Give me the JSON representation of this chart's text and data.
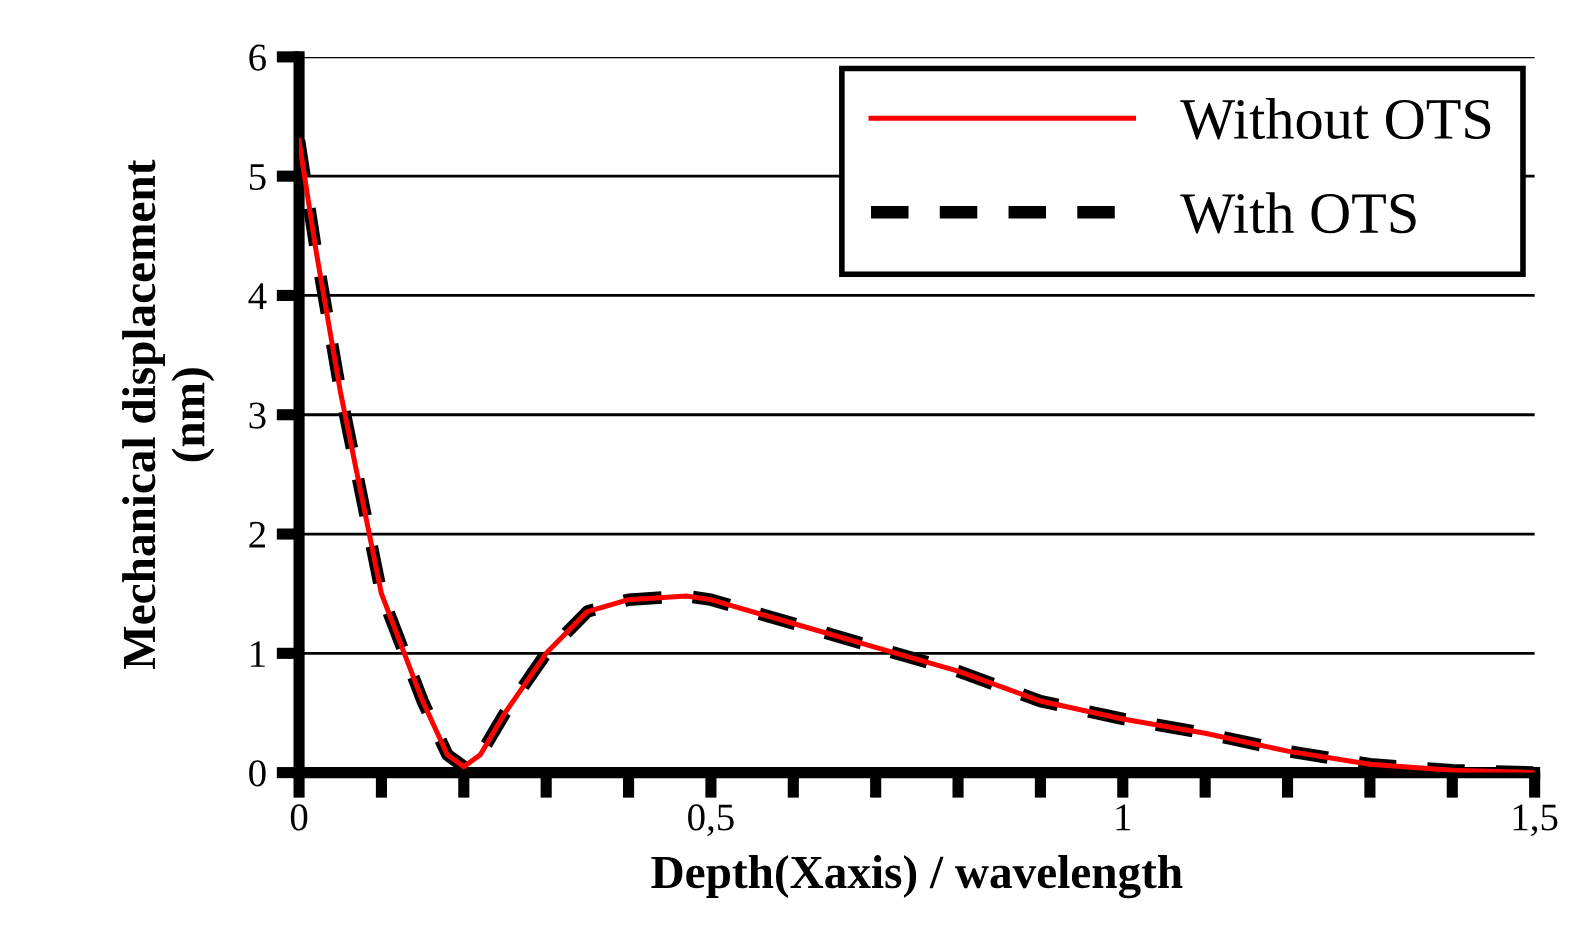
{
  "chart_data": {
    "type": "line",
    "xlabel": "Depth(Xaxis) / wavelength",
    "ylabel": "Mechanical displacement\n(nm)",
    "x": [
      0,
      0.02,
      0.05,
      0.1,
      0.15,
      0.18,
      0.2,
      0.22,
      0.25,
      0.3,
      0.35,
      0.4,
      0.47,
      0.5,
      0.6,
      0.7,
      0.8,
      0.9,
      1.0,
      1.1,
      1.2,
      1.3,
      1.4,
      1.5
    ],
    "series": [
      {
        "name": "Without OTS",
        "color": "#ff0000",
        "line_style": "solid",
        "values": [
          5.3,
          4.4,
          3.2,
          1.5,
          0.6,
          0.15,
          0.05,
          0.15,
          0.5,
          1.0,
          1.35,
          1.45,
          1.48,
          1.45,
          1.25,
          1.05,
          0.85,
          0.6,
          0.45,
          0.33,
          0.18,
          0.07,
          0.02,
          0.0
        ]
      },
      {
        "name": "With OTS",
        "color": "#000000",
        "line_style": "dashed",
        "values": [
          5.3,
          4.4,
          3.2,
          1.5,
          0.6,
          0.15,
          0.05,
          0.15,
          0.5,
          1.0,
          1.35,
          1.45,
          1.48,
          1.45,
          1.25,
          1.05,
          0.85,
          0.6,
          0.45,
          0.33,
          0.18,
          0.07,
          0.02,
          0.0
        ]
      }
    ],
    "xlim": [
      0,
      1.5
    ],
    "ylim": [
      0,
      6
    ],
    "xticks": [
      0,
      {
        "value": 0.1,
        "label": null
      },
      {
        "value": 0.2,
        "label": null
      },
      {
        "value": 0.3,
        "label": null
      },
      {
        "value": 0.4,
        "label": null
      },
      {
        "value": 0.5,
        "label": "0,5"
      },
      {
        "value": 0.6,
        "label": null
      },
      {
        "value": 0.7,
        "label": null
      },
      {
        "value": 0.8,
        "label": null
      },
      {
        "value": 0.9,
        "label": null
      },
      1,
      {
        "value": 1.1,
        "label": null
      },
      {
        "value": 1.2,
        "label": null
      },
      {
        "value": 1.3,
        "label": null
      },
      {
        "value": 1.4,
        "label": null
      },
      {
        "value": 1.5,
        "label": "1,5"
      }
    ],
    "yticks": [
      0,
      1,
      2,
      3,
      4,
      5,
      6
    ],
    "grid": "y",
    "legend": "top right",
    "marker": "none"
  }
}
